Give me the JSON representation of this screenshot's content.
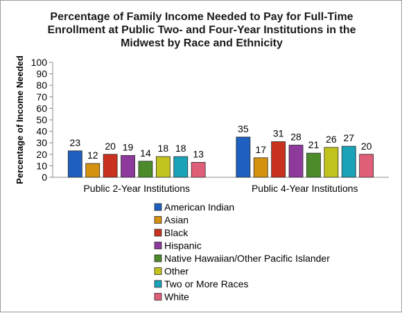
{
  "chart_data": {
    "type": "bar",
    "title": "Percentage of Family Income Needed to Pay for Full-Time Enrollment at Public Two- and Four-Year Institutions in the Midwest by Race and Ethnicity",
    "title_lines": [
      "Percentage of Family Income Needed to Pay for Full-Time",
      "Enrollment at Public Two- and Four-Year Institutions in the",
      "Midwest by Race and Ethnicity"
    ],
    "xlabel": "",
    "ylabel": "Percentage of Income Needed",
    "ylim": [
      0,
      100
    ],
    "yticks": [
      0,
      10,
      20,
      30,
      40,
      50,
      60,
      70,
      80,
      90,
      100
    ],
    "categories": [
      "Public 2-Year Institutions",
      "Public 4-Year Institutions"
    ],
    "series": [
      {
        "name": "American Indian",
        "color": "#1f5fbf",
        "values": [
          23,
          35
        ]
      },
      {
        "name": "Asian",
        "color": "#d4900f",
        "values": [
          12,
          17
        ]
      },
      {
        "name": "Black",
        "color": "#c8321e",
        "values": [
          20,
          31
        ]
      },
      {
        "name": "Hispanic",
        "color": "#8e3a9c",
        "values": [
          19,
          28
        ]
      },
      {
        "name": "Native Hawaiian/Other Pacific Islander",
        "color": "#4c8a2a",
        "values": [
          14,
          21
        ]
      },
      {
        "name": "Other",
        "color": "#c3c31e",
        "values": [
          18,
          26
        ]
      },
      {
        "name": "Two or More Races",
        "color": "#1aa3b8",
        "values": [
          18,
          27
        ]
      },
      {
        "name": "White",
        "color": "#e05f78",
        "values": [
          13,
          20
        ]
      }
    ],
    "grid": false,
    "legend_position": "bottom"
  }
}
